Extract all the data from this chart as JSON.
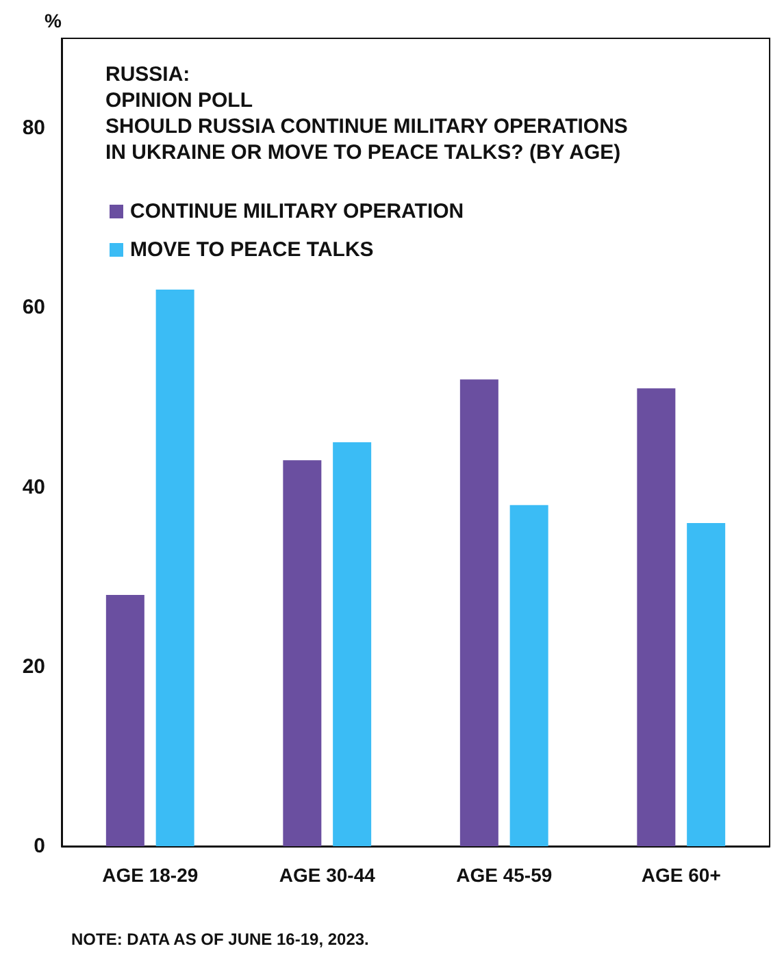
{
  "chart_data": {
    "type": "bar",
    "title": "RUSSIA:\nOPINION POLL\nSHOULD RUSSIA CONTINUE MILITARY OPERATIONS\nIN UKRAINE OR MOVE TO PEACE TALKS? (BY AGE)",
    "ylabel": "%",
    "categories": [
      "AGE 18-29",
      "AGE 30-44",
      "AGE 45-59",
      "AGE 60+"
    ],
    "series": [
      {
        "name": "CONTINUE MILITARY OPERATION",
        "color": "#6a4fa0",
        "values": [
          28,
          43,
          52,
          51
        ]
      },
      {
        "name": "MOVE TO PEACE TALKS",
        "color": "#3bbcf5",
        "values": [
          62,
          45,
          38,
          36
        ]
      }
    ],
    "ylim": [
      0,
      90
    ],
    "yticks": [
      0,
      20,
      40,
      60,
      80
    ],
    "grid": false,
    "legend": "top left",
    "annotations": [
      "NOTE: DATA AS OF JUNE 16-19, 2023."
    ]
  }
}
